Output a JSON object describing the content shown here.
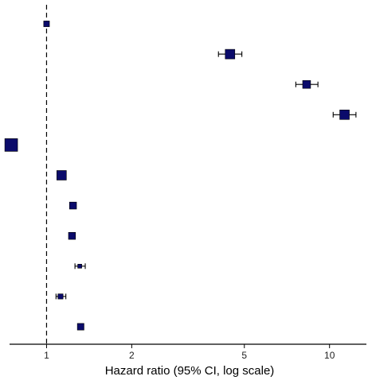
{
  "chart_data": {
    "type": "scatter",
    "subtype": "forest-plot",
    "xlabel": "Hazard ratio (95% CI, log scale)",
    "x_scale": "log",
    "xlim": [
      0.74,
      13.5
    ],
    "xticks": [
      {
        "value": 1,
        "label": "1"
      },
      {
        "value": 2,
        "label": "2"
      },
      {
        "value": 5,
        "label": "5"
      },
      {
        "value": 10,
        "label": "10"
      }
    ],
    "reference_line": 1,
    "grid": false,
    "point_color": "#0b0b6b",
    "rows": [
      {
        "hr": 1.0,
        "lower": 1.0,
        "upper": 1.0,
        "weight": 0.45
      },
      {
        "hr": 4.45,
        "lower": 4.05,
        "upper": 4.9,
        "weight": 0.75
      },
      {
        "hr": 8.3,
        "lower": 7.6,
        "upper": 9.1,
        "weight": 0.62
      },
      {
        "hr": 11.3,
        "lower": 10.3,
        "upper": 12.4,
        "weight": 0.75
      },
      {
        "hr": 0.75,
        "lower": 0.75,
        "upper": 0.75,
        "weight": 1.0
      },
      {
        "hr": 1.13,
        "lower": 1.13,
        "upper": 1.13,
        "weight": 0.75
      },
      {
        "hr": 1.24,
        "lower": 1.24,
        "upper": 1.24,
        "weight": 0.55
      },
      {
        "hr": 1.23,
        "lower": 1.23,
        "upper": 1.23,
        "weight": 0.55
      },
      {
        "hr": 1.31,
        "lower": 1.26,
        "upper": 1.37,
        "weight": 0.3
      },
      {
        "hr": 1.12,
        "lower": 1.08,
        "upper": 1.17,
        "weight": 0.4
      },
      {
        "hr": 1.32,
        "lower": 1.32,
        "upper": 1.32,
        "weight": 0.52
      }
    ]
  }
}
